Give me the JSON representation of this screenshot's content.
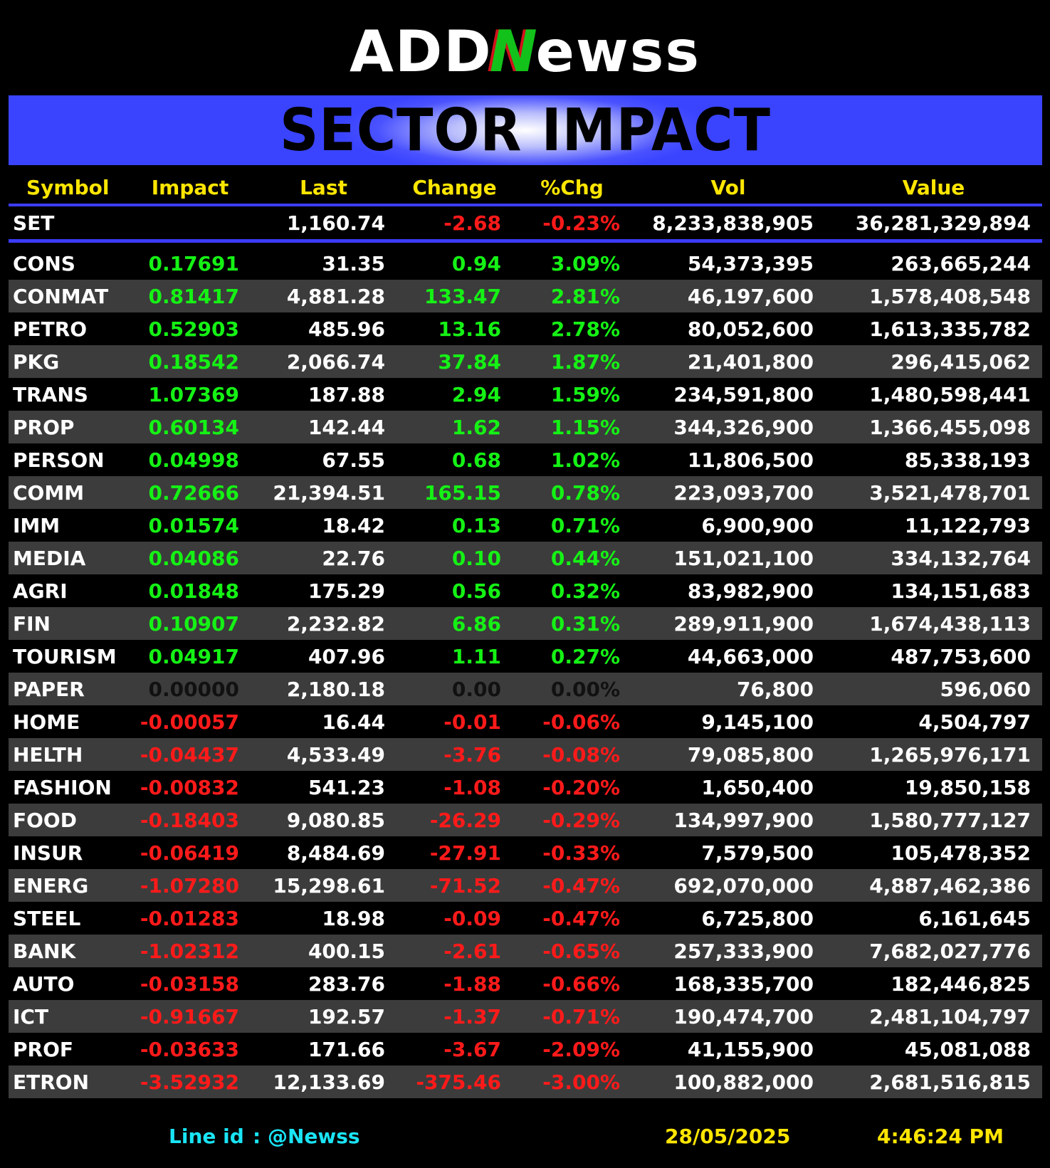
{
  "logo": {
    "part1": "ADD",
    "part2": "N",
    "part3": "ewss"
  },
  "banner": {
    "title": "SECTOR IMPACT"
  },
  "table": {
    "headers": [
      "Symbol",
      "Impact",
      "Last",
      "Change",
      "%Chg",
      "Vol",
      "Value"
    ],
    "index_row": {
      "symbol": "SET",
      "impact": "",
      "last": "1,160.74",
      "change": "-2.68",
      "pct": "-0.23%",
      "vol": "8,233,838,905",
      "value": "36,281,329,894"
    },
    "rows": [
      {
        "symbol": "CONS",
        "impact": "0.17691",
        "last": "31.35",
        "change": "0.94",
        "pct": "3.09%",
        "vol": "54,373,395",
        "value": "263,665,244"
      },
      {
        "symbol": "CONMAT",
        "impact": "0.81417",
        "last": "4,881.28",
        "change": "133.47",
        "pct": "2.81%",
        "vol": "46,197,600",
        "value": "1,578,408,548"
      },
      {
        "symbol": "PETRO",
        "impact": "0.52903",
        "last": "485.96",
        "change": "13.16",
        "pct": "2.78%",
        "vol": "80,052,600",
        "value": "1,613,335,782"
      },
      {
        "symbol": "PKG",
        "impact": "0.18542",
        "last": "2,066.74",
        "change": "37.84",
        "pct": "1.87%",
        "vol": "21,401,800",
        "value": "296,415,062"
      },
      {
        "symbol": "TRANS",
        "impact": "1.07369",
        "last": "187.88",
        "change": "2.94",
        "pct": "1.59%",
        "vol": "234,591,800",
        "value": "1,480,598,441"
      },
      {
        "symbol": "PROP",
        "impact": "0.60134",
        "last": "142.44",
        "change": "1.62",
        "pct": "1.15%",
        "vol": "344,326,900",
        "value": "1,366,455,098"
      },
      {
        "symbol": "PERSON",
        "impact": "0.04998",
        "last": "67.55",
        "change": "0.68",
        "pct": "1.02%",
        "vol": "11,806,500",
        "value": "85,338,193"
      },
      {
        "symbol": "COMM",
        "impact": "0.72666",
        "last": "21,394.51",
        "change": "165.15",
        "pct": "0.78%",
        "vol": "223,093,700",
        "value": "3,521,478,701"
      },
      {
        "symbol": "IMM",
        "impact": "0.01574",
        "last": "18.42",
        "change": "0.13",
        "pct": "0.71%",
        "vol": "6,900,900",
        "value": "11,122,793"
      },
      {
        "symbol": "MEDIA",
        "impact": "0.04086",
        "last": "22.76",
        "change": "0.10",
        "pct": "0.44%",
        "vol": "151,021,100",
        "value": "334,132,764"
      },
      {
        "symbol": "AGRI",
        "impact": "0.01848",
        "last": "175.29",
        "change": "0.56",
        "pct": "0.32%",
        "vol": "83,982,900",
        "value": "134,151,683"
      },
      {
        "symbol": "FIN",
        "impact": "0.10907",
        "last": "2,232.82",
        "change": "6.86",
        "pct": "0.31%",
        "vol": "289,911,900",
        "value": "1,674,438,113"
      },
      {
        "symbol": "TOURISM",
        "impact": "0.04917",
        "last": "407.96",
        "change": "1.11",
        "pct": "0.27%",
        "vol": "44,663,000",
        "value": "487,753,600"
      },
      {
        "symbol": "PAPER",
        "impact": "0.00000",
        "last": "2,180.18",
        "change": "0.00",
        "pct": "0.00%",
        "vol": "76,800",
        "value": "596,060"
      },
      {
        "symbol": "HOME",
        "impact": "-0.00057",
        "last": "16.44",
        "change": "-0.01",
        "pct": "-0.06%",
        "vol": "9,145,100",
        "value": "4,504,797"
      },
      {
        "symbol": "HELTH",
        "impact": "-0.04437",
        "last": "4,533.49",
        "change": "-3.76",
        "pct": "-0.08%",
        "vol": "79,085,800",
        "value": "1,265,976,171"
      },
      {
        "symbol": "FASHION",
        "impact": "-0.00832",
        "last": "541.23",
        "change": "-1.08",
        "pct": "-0.20%",
        "vol": "1,650,400",
        "value": "19,850,158"
      },
      {
        "symbol": "FOOD",
        "impact": "-0.18403",
        "last": "9,080.85",
        "change": "-26.29",
        "pct": "-0.29%",
        "vol": "134,997,900",
        "value": "1,580,777,127"
      },
      {
        "symbol": "INSUR",
        "impact": "-0.06419",
        "last": "8,484.69",
        "change": "-27.91",
        "pct": "-0.33%",
        "vol": "7,579,500",
        "value": "105,478,352"
      },
      {
        "symbol": "ENERG",
        "impact": "-1.07280",
        "last": "15,298.61",
        "change": "-71.52",
        "pct": "-0.47%",
        "vol": "692,070,000",
        "value": "4,887,462,386"
      },
      {
        "symbol": "STEEL",
        "impact": "-0.01283",
        "last": "18.98",
        "change": "-0.09",
        "pct": "-0.47%",
        "vol": "6,725,800",
        "value": "6,161,645"
      },
      {
        "symbol": "BANK",
        "impact": "-1.02312",
        "last": "400.15",
        "change": "-2.61",
        "pct": "-0.65%",
        "vol": "257,333,900",
        "value": "7,682,027,776"
      },
      {
        "symbol": "AUTO",
        "impact": "-0.03158",
        "last": "283.76",
        "change": "-1.88",
        "pct": "-0.66%",
        "vol": "168,335,700",
        "value": "182,446,825"
      },
      {
        "symbol": "ICT",
        "impact": "-0.91667",
        "last": "192.57",
        "change": "-1.37",
        "pct": "-0.71%",
        "vol": "190,474,700",
        "value": "2,481,104,797"
      },
      {
        "symbol": "PROF",
        "impact": "-0.03633",
        "last": "171.66",
        "change": "-3.67",
        "pct": "-2.09%",
        "vol": "41,155,900",
        "value": "45,081,088"
      },
      {
        "symbol": "ETRON",
        "impact": "-3.52932",
        "last": "12,133.69",
        "change": "-375.46",
        "pct": "-3.00%",
        "vol": "100,882,000",
        "value": "2,681,516,815"
      }
    ]
  },
  "footer": {
    "line_label": "Line id",
    "line_value": ": @Newss",
    "date": "28/05/2025",
    "time": "4:46:24 PM"
  },
  "colors": {
    "positive": "#15f215",
    "negative": "#ff1a1a",
    "zero": "#111111",
    "header_text": "#ffe600",
    "accent_line": "#3c3cff",
    "footer_link": "#19e4f5"
  }
}
